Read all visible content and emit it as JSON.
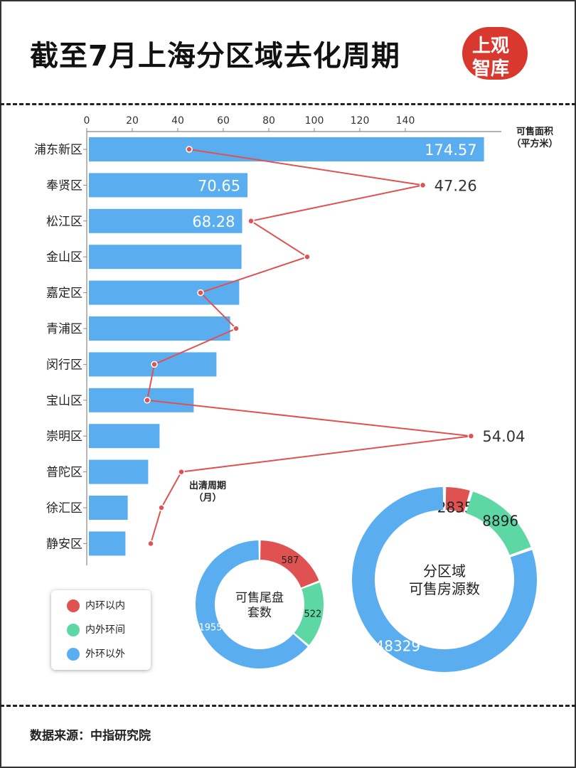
{
  "title": "截至7月上海分区域去化周期",
  "logo": {
    "line1": "上观",
    "line2": "智库"
  },
  "source": "数据来源：中指研究院",
  "colors": {
    "bar": "#5aaef0",
    "line": "#e05252",
    "inner": "#e05252",
    "middle": "#5dd8a4",
    "outer": "#5aaef0"
  },
  "chart_data": [
    {
      "type": "bar",
      "orientation": "horizontal",
      "title": "",
      "categories": [
        "浦东新区",
        "奉贤区",
        "松江区",
        "金山区",
        "嘉定区",
        "青浦区",
        "闵行区",
        "宝山区",
        "崇明区",
        "普陀区",
        "徐汇区",
        "静安区"
      ],
      "values": [
        174.57,
        70.65,
        68.28,
        68,
        67,
        63,
        57,
        47,
        32,
        27,
        18,
        17
      ],
      "data_labels": [
        "174.57",
        "70.65",
        "68.28",
        "",
        "",
        "",
        "",
        "",
        "",
        "",
        "",
        ""
      ],
      "xlim": [
        0,
        180
      ],
      "xticks": [
        "0",
        "20",
        "40",
        "60",
        "80",
        "100",
        "120",
        "140"
      ],
      "axis_label": "可售面积\n（平方米）",
      "series_label": "可售面积（平方米）"
    },
    {
      "type": "line",
      "orientation": "horizontal",
      "categories": [
        "浦东新区",
        "奉贤区",
        "松江区",
        "金山区",
        "嘉定区",
        "青浦区",
        "闵行区",
        "宝山区",
        "崇明区",
        "普陀区",
        "徐汇区",
        "静安区"
      ],
      "values": [
        14.4,
        47.26,
        23.1,
        31,
        16,
        21,
        9.5,
        8.5,
        54.04,
        13.3,
        10.5,
        9
      ],
      "data_labels": [
        "",
        "47.26",
        "",
        "",
        "",
        "",
        "",
        "",
        "54.04",
        "",
        "",
        ""
      ],
      "series_label": "出清周期\n（月）"
    },
    {
      "type": "pie",
      "donut": true,
      "center_label": "可售尾盘\n套数",
      "labels": [
        "内环以内",
        "内外环间",
        "外环以外"
      ],
      "values": [
        587,
        522,
        1955
      ],
      "value_labels": [
        "587",
        "522",
        "1955"
      ]
    },
    {
      "type": "pie",
      "donut": true,
      "center_label": "分区域\n可售房源数",
      "labels": [
        "内环以内",
        "内外环间",
        "外环以外"
      ],
      "values": [
        2835,
        8896,
        48329
      ],
      "value_labels": [
        "2835",
        "8896",
        "48329"
      ]
    }
  ],
  "legend": [
    {
      "label": "内环以内",
      "color": "#e05252"
    },
    {
      "label": "内外环间",
      "color": "#5dd8a4"
    },
    {
      "label": "外环以外",
      "color": "#5aaef0"
    }
  ]
}
